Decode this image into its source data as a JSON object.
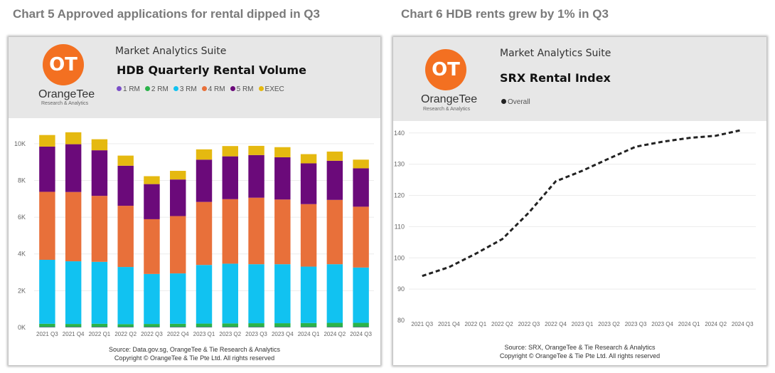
{
  "headings": {
    "left": "Chart 5 Approved applications for rental dipped in Q3",
    "right": "Chart 6 HDB rents grew by 1% in Q3"
  },
  "brand": {
    "logo_mark": "OT",
    "name": "OrangeTee",
    "tagline": "Research & Analytics",
    "suite": "Market Analytics Suite",
    "logo_color": "#f37021"
  },
  "left_panel": {
    "source": "Source: Data.gov.sg, OrangeTee & Tie Research & Analytics",
    "copyright": "Copyright © OrangeTee & Tie Pte Ltd. All rights reserved"
  },
  "right_panel": {
    "source": "Source: SRX, OrangeTee & Tie Research & Analytics",
    "copyright": "Copyright © OrangeTee & Tie Pte Ltd. All rights reserved"
  },
  "chart_data": [
    {
      "type": "bar",
      "stacked": true,
      "title": "HDB Quarterly Rental Volume",
      "categories": [
        "2021 Q3",
        "2021 Q4",
        "2022 Q1",
        "2022 Q2",
        "2022 Q3",
        "2022 Q4",
        "2023 Q1",
        "2023 Q2",
        "2023 Q3",
        "2023 Q4",
        "2024 Q1",
        "2024 Q2",
        "2024 Q3"
      ],
      "series": [
        {
          "name": "1 RM",
          "color": "#7b4fc9",
          "values": [
            20,
            20,
            20,
            20,
            20,
            20,
            20,
            20,
            20,
            20,
            20,
            20,
            20
          ]
        },
        {
          "name": "2 RM",
          "color": "#2bb34a",
          "values": [
            180,
            170,
            180,
            160,
            170,
            180,
            190,
            200,
            210,
            210,
            220,
            230,
            230
          ]
        },
        {
          "name": "3 RM",
          "color": "#11c2f1",
          "values": [
            3480,
            3410,
            3370,
            3110,
            2720,
            2740,
            3190,
            3250,
            3210,
            3210,
            3070,
            3190,
            3010
          ]
        },
        {
          "name": "4 RM",
          "color": "#e8703a",
          "values": [
            3700,
            3770,
            3590,
            3330,
            2980,
            3120,
            3430,
            3510,
            3620,
            3520,
            3400,
            3500,
            3310
          ]
        },
        {
          "name": "5 RM",
          "color": "#6b0a7a",
          "values": [
            2460,
            2600,
            2480,
            2180,
            1910,
            1990,
            2300,
            2330,
            2320,
            2300,
            2220,
            2130,
            2090
          ]
        },
        {
          "name": "EXEC",
          "color": "#e5b910",
          "values": [
            630,
            650,
            600,
            550,
            430,
            470,
            560,
            560,
            500,
            550,
            500,
            500,
            470
          ]
        }
      ],
      "ylim": [
        0,
        11000
      ],
      "yticks": [
        0,
        2000,
        4000,
        6000,
        8000,
        10000
      ],
      "yticklabels": [
        "0K",
        "2K",
        "4K",
        "6K",
        "8K",
        "10K"
      ],
      "legend": "top",
      "grid": true
    },
    {
      "type": "line",
      "title": "SRX Rental Index",
      "x": [
        "2021 Q3",
        "2021 Q4",
        "2022 Q1",
        "2022 Q2",
        "2022 Q3",
        "2022 Q4",
        "2023 Q1",
        "2023 Q2",
        "2023 Q3",
        "2023 Q4",
        "2024 Q1",
        "2024 Q2",
        "2024 Q3"
      ],
      "series": [
        {
          "name": "Overall",
          "color": "#222222",
          "style": "dashed",
          "values": [
            94.2,
            97.0,
            101.3,
            106.0,
            114.5,
            124.5,
            127.9,
            131.8,
            135.6,
            137.2,
            138.4,
            139.1,
            141.0
          ]
        }
      ],
      "ylim": [
        80,
        142
      ],
      "yticks": [
        80,
        90,
        100,
        110,
        120,
        130,
        140
      ],
      "legend": "top-left",
      "grid": true
    }
  ]
}
